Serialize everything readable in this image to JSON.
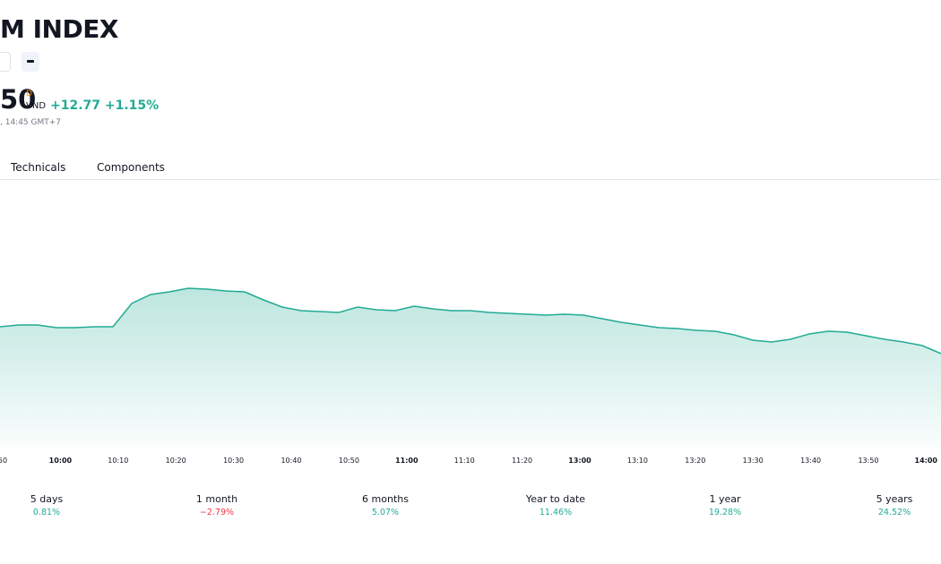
{
  "header": {
    "title": "M INDEX",
    "price": "50",
    "price_flag": "D",
    "currency": "VND",
    "change": "+12.77",
    "change_percent": "+1.15%",
    "time": ", 14:45 GMT+7"
  },
  "tabs": [
    "Technicals",
    "Components"
  ],
  "chart_data": {
    "type": "area",
    "color": "#22ab94",
    "values": [
      1126.2,
      1126.4,
      1126.4,
      1126.1,
      1126.1,
      1126.2,
      1126.2,
      1128.8,
      1129.8,
      1130.1,
      1130.5,
      1130.4,
      1130.2,
      1130.1,
      1129.2,
      1128.4,
      1128.0,
      1127.9,
      1127.8,
      1128.4,
      1128.1,
      1128.0,
      1128.5,
      1128.2,
      1128.0,
      1128.0,
      1127.8,
      1127.7,
      1127.6,
      1127.5,
      1127.6,
      1127.5,
      1127.1,
      1126.7,
      1126.4,
      1126.1,
      1126.0,
      1125.8,
      1125.7,
      1125.3,
      1124.7,
      1124.5,
      1124.8,
      1125.4,
      1125.7,
      1125.6,
      1125.2,
      1124.8,
      1124.5,
      1124.1,
      1123.2
    ],
    "ylim": [
      1113.2,
      1138.2
    ],
    "xticks": [
      "50",
      "10:00",
      "10:10",
      "10:20",
      "10:30",
      "10:40",
      "10:50",
      "11:00",
      "11:10",
      "11:20",
      "13:00",
      "13:10",
      "13:20",
      "13:30",
      "13:40",
      "13:50",
      "14:00"
    ]
  },
  "performance": [
    {
      "period": "5 days",
      "change": "0.81%",
      "color": "#22ab94"
    },
    {
      "period": "1 month",
      "change": "−2.79%",
      "color": "#f23645"
    },
    {
      "period": "6 months",
      "change": "5.07%",
      "color": "#22ab94"
    },
    {
      "period": "Year to date",
      "change": "11.46%",
      "color": "#22ab94"
    },
    {
      "period": "1 year",
      "change": "19.28%",
      "color": "#22ab94"
    },
    {
      "period": "5 years",
      "change": "24.52%",
      "color": "#22ab94"
    }
  ]
}
